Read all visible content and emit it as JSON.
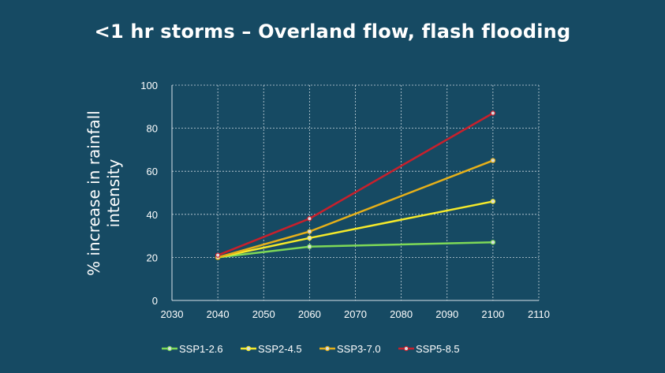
{
  "slide": {
    "title": "<1 hr storms – Overland flow, flash flooding"
  },
  "chart_data": {
    "type": "line",
    "title": "",
    "xlabel": "",
    "ylabel": "% increase in rainfall intensity",
    "xlim": [
      2030,
      2110
    ],
    "ylim": [
      0,
      100
    ],
    "x_ticks": [
      2030,
      2040,
      2050,
      2060,
      2070,
      2080,
      2090,
      2100,
      2110
    ],
    "y_ticks": [
      0,
      20,
      40,
      60,
      80,
      100
    ],
    "grid": true,
    "legend_position": "bottom",
    "series": [
      {
        "name": "SSP1-2.6",
        "color": "#7ed957",
        "x": [
          2040,
          2060,
          2100
        ],
        "values": [
          20,
          25,
          27
        ]
      },
      {
        "name": "SSP2-4.5",
        "color": "#f5ea2a",
        "x": [
          2040,
          2060,
          2100
        ],
        "values": [
          20,
          29,
          46
        ]
      },
      {
        "name": "SSP3-7.0",
        "color": "#e6b019",
        "x": [
          2040,
          2060,
          2100
        ],
        "values": [
          20,
          32,
          65
        ]
      },
      {
        "name": "SSP5-8.5",
        "color": "#c8202c",
        "x": [
          2040,
          2060,
          2100
        ],
        "values": [
          21,
          38,
          87
        ]
      }
    ]
  }
}
